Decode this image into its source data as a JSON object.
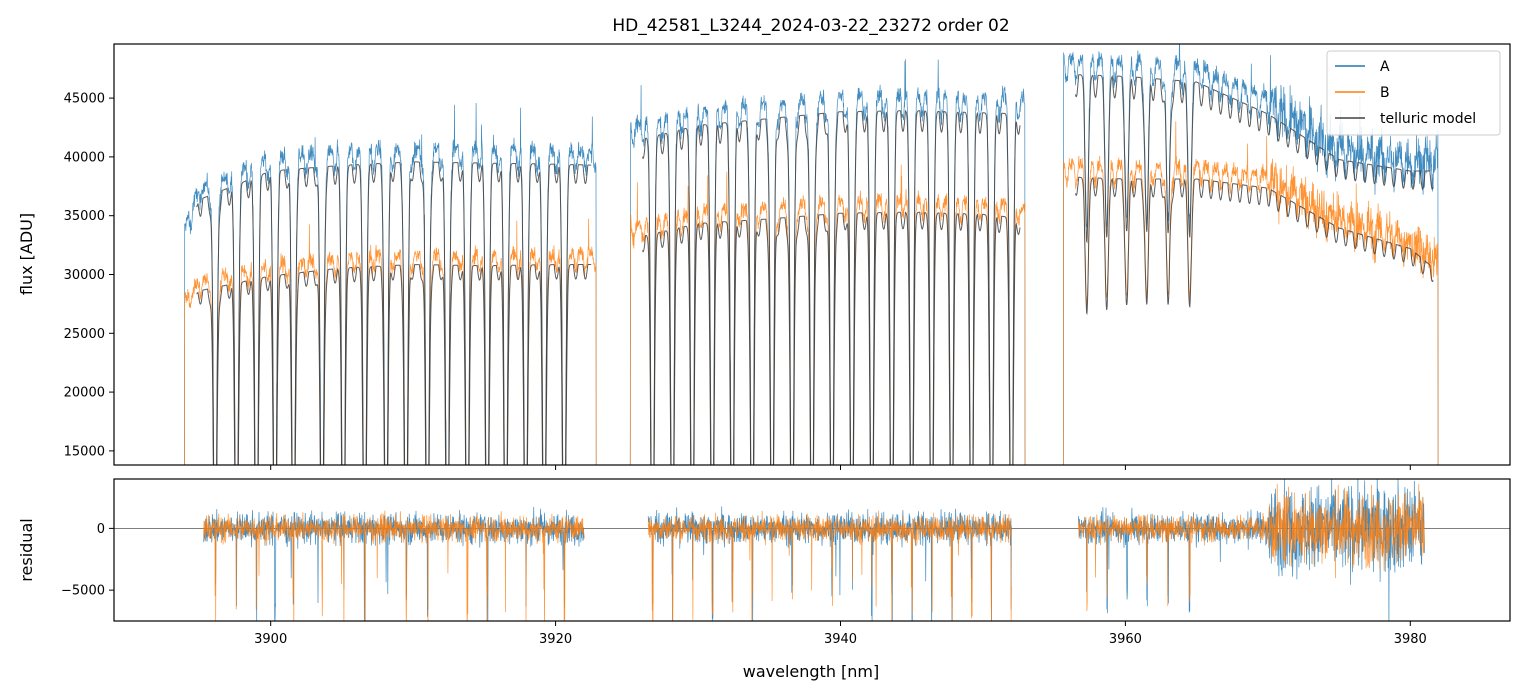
{
  "chart_data": [
    {
      "type": "line",
      "title": "HD_42581_L3244_2024-03-22_23272  order 02",
      "xlabel": "",
      "ylabel": "flux [ADU]",
      "xlim": [
        3889,
        3987
      ],
      "ylim": [
        13800,
        49600
      ],
      "yticks": [
        15000,
        20000,
        25000,
        30000,
        35000,
        40000,
        45000
      ],
      "ytick_labels": [
        "15000",
        "20000",
        "25000",
        "30000",
        "35000",
        "40000",
        "45000"
      ],
      "xticks": [
        3900,
        3920,
        3940,
        3960,
        3980
      ],
      "segments_nm": [
        [
          3893.8,
          3923.0
        ],
        [
          3925.1,
          3953.1
        ],
        [
          3955.5,
          3982.1
        ]
      ],
      "legend_position": "top-right",
      "series": [
        {
          "name": "A",
          "color": "#1f77b4",
          "continuum_x": [
            3893.8,
            3895.0,
            3900.0,
            3905.0,
            3910.0,
            3915.0,
            3920.0,
            3923.0,
            3925.1,
            3930.0,
            3935.0,
            3940.0,
            3945.0,
            3950.0,
            3953.1,
            3955.5,
            3960.0,
            3965.0,
            3970.0,
            3975.0,
            3980.0,
            3982.1
          ],
          "continuum_y": [
            33500,
            37500,
            40000,
            40500,
            40800,
            40700,
            40600,
            40500,
            42500,
            44000,
            44600,
            45200,
            45300,
            45100,
            45000,
            48500,
            48300,
            47800,
            45000,
            41000,
            40000,
            40000
          ]
        },
        {
          "name": "B",
          "color": "#ff7f0e",
          "continuum_x": [
            3893.8,
            3895.0,
            3900.0,
            3905.0,
            3910.0,
            3915.0,
            3920.0,
            3923.0,
            3925.1,
            3930.0,
            3935.0,
            3940.0,
            3945.0,
            3950.0,
            3953.1,
            3955.5,
            3960.0,
            3965.0,
            3970.0,
            3975.0,
            3980.0,
            3982.1
          ],
          "continuum_y": [
            27800,
            29500,
            30800,
            31500,
            31800,
            31700,
            31800,
            31800,
            34000,
            35400,
            35800,
            36300,
            36400,
            36200,
            35800,
            39500,
            39300,
            39300,
            38500,
            35000,
            33200,
            31000
          ]
        },
        {
          "name": "telluric model",
          "color": "#404040",
          "comment_free": true,
          "line_centers_nm": [
            3896.1,
            3897.6,
            3899.0,
            3900.3,
            3901.6,
            3903.6,
            3905.1,
            3906.6,
            3908.1,
            3909.5,
            3911.0,
            3912.4,
            3913.8,
            3915.2,
            3916.5,
            3917.9,
            3919.2,
            3920.6,
            3926.8,
            3928.2,
            3929.6,
            3931.0,
            3932.4,
            3933.8,
            3935.2,
            3936.6,
            3938.0,
            3939.4,
            3940.8,
            3942.2,
            3943.6,
            3945.0,
            3946.4,
            3947.8,
            3949.2,
            3950.6,
            3952.0,
            3957.3,
            3958.7,
            3960.1,
            3961.5,
            3963.0,
            3964.5
          ]
        }
      ]
    },
    {
      "type": "line",
      "title": "",
      "xlabel": "wavelength [nm]",
      "ylabel": "residual",
      "xlim": [
        3889,
        3987
      ],
      "ylim": [
        -7500,
        4000
      ],
      "yticks": [
        -5000,
        0
      ],
      "ytick_labels": [
        "−5000",
        "0"
      ],
      "xticks": [
        3900,
        3920,
        3940,
        3960,
        3980
      ],
      "xtick_labels": [
        "3900",
        "3920",
        "3940",
        "3960",
        "3980"
      ],
      "segments_nm": [
        [
          3895.3,
          3922.0
        ],
        [
          3926.5,
          3952.0
        ],
        [
          3956.7,
          3981.0
        ]
      ],
      "series": [
        {
          "name": "A",
          "color": "#1f77b4",
          "noise": 1200
        },
        {
          "name": "B",
          "color": "#ff7f0e",
          "noise": 1000
        }
      ]
    }
  ],
  "legend": {
    "entries": [
      "A",
      "B",
      "telluric model"
    ],
    "colors": [
      "#1f77b4",
      "#ff7f0e",
      "#404040"
    ]
  }
}
